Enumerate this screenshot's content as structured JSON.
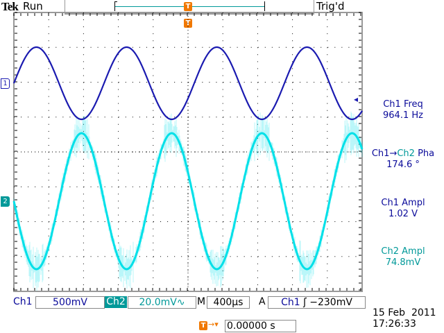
{
  "header": {
    "brand": "Tek",
    "run_state": "Run",
    "trigger_state": "Trig'd",
    "trigger_marker": "T"
  },
  "channels": {
    "ch1_marker": "1",
    "ch2_marker": "2"
  },
  "colors": {
    "ch1": "#1a1ab0",
    "ch2": "#00e0e8",
    "ch1_text": "#0a0a9a",
    "ch2_text": "#009999",
    "trigger": "#f07800"
  },
  "measurements": [
    {
      "label": "Ch1 Freq",
      "value": "964.1 Hz"
    },
    {
      "label_a": "Ch1",
      "arrow": "→",
      "label_b": "Ch2",
      "label_c": " Pha",
      "value": "174.6 °"
    },
    {
      "label": "Ch1 Ampl",
      "value": "1.02 V"
    },
    {
      "label": "Ch2 Ampl",
      "value": "74.8mV"
    }
  ],
  "status_bar": {
    "ch1_label": "Ch1",
    "ch1_scale": "500mV",
    "ch2_label": "Ch2",
    "ch2_scale": "20.0mV∿",
    "timebase_label": "M",
    "timebase": "400µs",
    "trigger_label": "A",
    "trigger_source": "Ch1",
    "trigger_slope": "ʃ",
    "trigger_level": "−230mV"
  },
  "trigger_position": {
    "icon": "T",
    "arrow": "→▾",
    "value": "0.00000 s"
  },
  "datetime": {
    "date": "15 Feb  2011",
    "time": "17:26:33"
  },
  "waveforms": {
    "ch1_freq_hz": 964.1,
    "ch1_ampl_v": 1.02,
    "ch2_ampl_mv": 74.8,
    "phase_deg": 174.6
  }
}
